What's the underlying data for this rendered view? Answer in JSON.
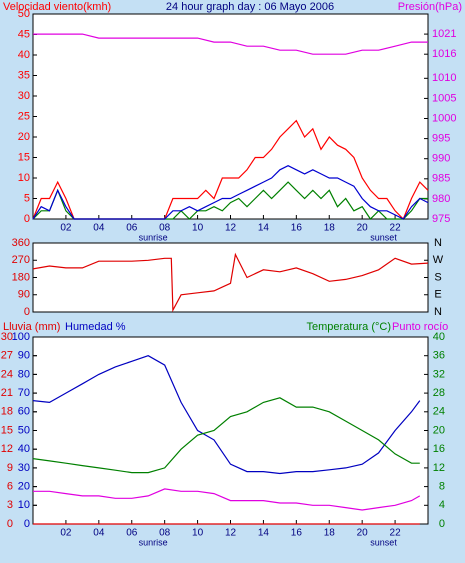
{
  "chart_data": [
    {
      "type": "line",
      "title": "24 hour graph day : 06 Mayo 2006",
      "xlim": [
        0,
        24
      ],
      "xticks": [
        {
          "value": 2,
          "label": "02"
        },
        {
          "value": 4,
          "label": "04"
        },
        {
          "value": 6,
          "label": "06"
        },
        {
          "value": 8,
          "label": "08"
        },
        {
          "value": 10,
          "label": "10"
        },
        {
          "value": 12,
          "label": "12"
        },
        {
          "value": 14,
          "label": "14"
        },
        {
          "value": 16,
          "label": "16"
        },
        {
          "value": 18,
          "label": "18"
        },
        {
          "value": 20,
          "label": "20"
        },
        {
          "value": 22,
          "label": "22"
        }
      ],
      "annotations": [
        {
          "text": "sunrise",
          "x": 7.3
        },
        {
          "text": "sunset",
          "x": 21.3
        }
      ],
      "ylim": [
        0,
        50
      ],
      "yticks": [
        0,
        5,
        10,
        15,
        20,
        25,
        30,
        35,
        40,
        45,
        50
      ],
      "y2lim": [
        975,
        1026
      ],
      "y2ticks": [
        975,
        980,
        985,
        990,
        995,
        1000,
        1005,
        1010,
        1016,
        1021
      ],
      "x": [
        0,
        0.5,
        1,
        1.5,
        2,
        2.5,
        3,
        3.5,
        4,
        4.5,
        5,
        5.5,
        6,
        6.5,
        7,
        7.5,
        8,
        8.5,
        9,
        9.5,
        10,
        10.5,
        11,
        11.5,
        12,
        12.5,
        13,
        13.5,
        14,
        14.5,
        15,
        15.5,
        16,
        16.5,
        17,
        17.5,
        18,
        18.5,
        19,
        19.5,
        20,
        20.5,
        21,
        21.5,
        22,
        22.5,
        23,
        23.5,
        24
      ],
      "series": [
        {
          "name": "Velocidad viento(kmh)",
          "color": "#ff0000",
          "values": [
            0,
            5,
            5,
            9,
            5,
            0,
            0,
            0,
            0,
            0,
            0,
            0,
            0,
            0,
            0,
            0,
            0,
            5,
            5,
            5,
            5,
            7,
            5,
            10,
            10,
            10,
            12,
            15,
            15,
            17,
            20,
            22,
            24,
            20,
            22,
            17,
            20,
            18,
            17,
            15,
            10,
            7,
            5,
            5,
            2,
            0,
            5,
            9,
            7
          ]
        },
        {
          "color": "#008000",
          "values": [
            0,
            2,
            2,
            7,
            2,
            0,
            0,
            0,
            0,
            0,
            0,
            0,
            0,
            0,
            0,
            0,
            0,
            0,
            2,
            0,
            2,
            2,
            3,
            2,
            4,
            5,
            3,
            5,
            7,
            5,
            7,
            9,
            7,
            5,
            7,
            5,
            7,
            3,
            5,
            2,
            3,
            0,
            2,
            0,
            0,
            0,
            2,
            5,
            5
          ]
        },
        {
          "color": "#0000d0",
          "values": [
            0,
            3,
            2,
            7,
            3,
            0,
            0,
            0,
            0,
            0,
            0,
            0,
            0,
            0,
            0,
            0,
            0,
            2,
            2,
            3,
            2,
            3,
            4,
            5,
            5,
            6,
            7,
            8,
            9,
            10,
            12,
            13,
            12,
            11,
            12,
            11,
            10,
            10,
            9,
            8,
            5,
            3,
            2,
            2,
            1,
            0,
            3,
            5,
            4
          ]
        },
        {
          "name": "Presión(hPa)",
          "color": "#e000e0",
          "axis": "y2",
          "x": [
            0,
            1,
            2,
            3,
            4,
            5,
            6,
            7,
            8,
            9,
            10,
            11,
            12,
            13,
            14,
            15,
            16,
            17,
            18,
            19,
            20,
            21,
            22,
            23,
            24
          ],
          "values": [
            1021,
            1021,
            1021,
            1021,
            1020,
            1020,
            1020,
            1020,
            1020,
            1020,
            1020,
            1019,
            1019,
            1018,
            1018,
            1017,
            1017,
            1016,
            1016,
            1016,
            1017,
            1017,
            1018,
            1019,
            1019
          ]
        }
      ]
    },
    {
      "type": "line",
      "xlim": [
        0,
        24
      ],
      "ylim": [
        0,
        360
      ],
      "yticks": [
        0,
        90,
        180,
        270,
        360
      ],
      "y2lim": [
        0,
        360
      ],
      "y2ticks": [
        {
          "value": 0,
          "label": "N"
        },
        {
          "value": 90,
          "label": "E"
        },
        {
          "value": 180,
          "label": "S"
        },
        {
          "value": 270,
          "label": "W"
        },
        {
          "value": 360,
          "label": "N"
        }
      ],
      "x": [
        0,
        1,
        2,
        3,
        4,
        5,
        6,
        7,
        8,
        8.4,
        8.5,
        9,
        10,
        11,
        11.5,
        12,
        12.3,
        13,
        14,
        15,
        16,
        17,
        18,
        19,
        20,
        21,
        22,
        23,
        24
      ],
      "series": [
        {
          "color": "#e00000",
          "values": [
            225,
            240,
            230,
            230,
            265,
            265,
            265,
            270,
            280,
            280,
            10,
            90,
            100,
            110,
            130,
            150,
            300,
            180,
            220,
            210,
            230,
            200,
            160,
            170,
            190,
            220,
            280,
            250,
            255
          ]
        }
      ]
    },
    {
      "type": "line",
      "xlim": [
        0,
        24
      ],
      "xticks": [
        {
          "value": 2,
          "label": "02"
        },
        {
          "value": 4,
          "label": "04"
        },
        {
          "value": 6,
          "label": "06"
        },
        {
          "value": 8,
          "label": "08"
        },
        {
          "value": 10,
          "label": "10"
        },
        {
          "value": 12,
          "label": "12"
        },
        {
          "value": 14,
          "label": "14"
        },
        {
          "value": 16,
          "label": "16"
        },
        {
          "value": 18,
          "label": "18"
        },
        {
          "value": 20,
          "label": "20"
        },
        {
          "value": 22,
          "label": "22"
        }
      ],
      "annotations": [
        {
          "text": "sunrise",
          "x": 7.3
        },
        {
          "text": "sunset",
          "x": 21.3
        }
      ],
      "ylim": [
        0,
        30
      ],
      "yticks": [
        0,
        3,
        6,
        9,
        12,
        15,
        18,
        21,
        24,
        27,
        30
      ],
      "y3lim": [
        0,
        100
      ],
      "y3ticks": [
        0,
        10,
        20,
        30,
        40,
        50,
        60,
        70,
        80,
        90,
        100
      ],
      "y2lim": [
        0,
        40
      ],
      "y2ticks": [
        0,
        4,
        8,
        12,
        16,
        20,
        24,
        28,
        32,
        36,
        40
      ],
      "x": [
        0,
        1,
        2,
        3,
        4,
        5,
        6,
        7,
        8,
        9,
        10,
        11,
        12,
        13,
        14,
        15,
        16,
        17,
        18,
        19,
        20,
        21,
        22,
        23,
        23.5
      ],
      "series": [
        {
          "name": "Lluvia (mm)",
          "color": "#e00000",
          "values": [
            0,
            0,
            0,
            0,
            0,
            0,
            0,
            0,
            0,
            0,
            0,
            0,
            0,
            0,
            0,
            0,
            0,
            0,
            0,
            0,
            0,
            0,
            0,
            0,
            0
          ]
        },
        {
          "name": "Humedad %",
          "color": "#0000c0",
          "axis": "y3",
          "values": [
            66,
            65,
            70,
            75,
            80,
            84,
            87,
            90,
            85,
            65,
            50,
            45,
            32,
            28,
            28,
            27,
            28,
            28,
            29,
            30,
            32,
            38,
            50,
            60,
            66
          ]
        },
        {
          "name": "Temperatura (°C)",
          "color": "#008000",
          "axis": "y2",
          "values": [
            14,
            13.5,
            13,
            12.5,
            12,
            11.5,
            11,
            11,
            12,
            16,
            19,
            20,
            23,
            24,
            26,
            27,
            25,
            25,
            24,
            22,
            20,
            18,
            15,
            13,
            13
          ]
        },
        {
          "name": "Punto rocío",
          "color": "#e000e0",
          "axis": "y2",
          "values": [
            7,
            7,
            6.5,
            6,
            6,
            5.5,
            5.5,
            6,
            7.5,
            7,
            7,
            6.5,
            5,
            5,
            5,
            4.5,
            4.5,
            4,
            4,
            3.5,
            3,
            3.5,
            4,
            5,
            6
          ]
        }
      ]
    }
  ]
}
